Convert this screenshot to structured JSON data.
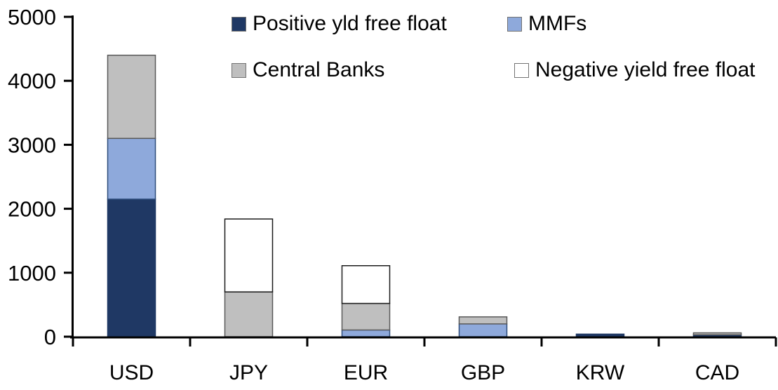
{
  "chart_data": {
    "type": "bar",
    "stacked": true,
    "title": "",
    "xlabel": "",
    "ylabel": "",
    "categories": [
      "USD",
      "JPY",
      "EUR",
      "GBP",
      "KRW",
      "CAD"
    ],
    "series": [
      {
        "name": "Positive yld free float",
        "color": "#1F3864",
        "border": "#1F3864",
        "values": [
          2150,
          0,
          0,
          0,
          40,
          30
        ]
      },
      {
        "name": "MMFs",
        "color": "#8EA9DB",
        "border": "#2E4D7B",
        "values": [
          950,
          0,
          105,
          200,
          0,
          0
        ]
      },
      {
        "name": "Central Banks",
        "color": "#BFBFBF",
        "border": "#595959",
        "values": [
          1300,
          700,
          415,
          110,
          0,
          30
        ]
      },
      {
        "name": "Negative yield free float",
        "color": "#FFFFFF",
        "border": "#1A1A1A",
        "values": [
          0,
          1140,
          590,
          0,
          0,
          0
        ]
      }
    ],
    "totals": {
      "USD": 4400,
      "JPY": 1840,
      "EUR": 1110,
      "GBP": 310,
      "KRW": 40,
      "CAD": 60
    },
    "ylim": [
      0,
      5000
    ],
    "ytick_interval": 1000,
    "yticks": [
      "0",
      "1000",
      "2000",
      "3000",
      "4000",
      "5000"
    ],
    "grid": "off",
    "legend_position": "top-inside-two-rows"
  },
  "colors": {
    "background": "#FFFFFF",
    "axis": "#000000",
    "text": "#000000"
  }
}
